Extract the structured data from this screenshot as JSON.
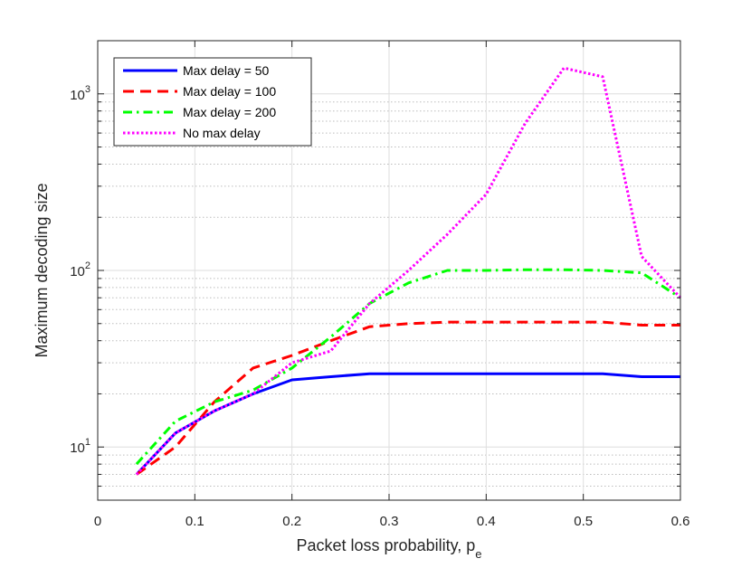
{
  "chart_data": {
    "type": "line",
    "title": "",
    "xlabel": "Packet loss probability, p",
    "xlabel_subscript": "e",
    "ylabel": "Maximum decoding size",
    "xlim": [
      0,
      0.6
    ],
    "ylim": [
      5,
      2000
    ],
    "yscale": "log",
    "xticks": [
      0,
      0.1,
      0.2,
      0.3,
      0.4,
      0.5,
      0.6
    ],
    "xtick_labels": [
      "0",
      "0.1",
      "0.2",
      "0.3",
      "0.4",
      "0.5",
      "0.6"
    ],
    "ytick_major": [
      {
        "value": 10,
        "base": "10",
        "exp": "1"
      },
      {
        "value": 100,
        "base": "10",
        "exp": "2"
      },
      {
        "value": 1000,
        "base": "10",
        "exp": "3"
      }
    ],
    "grid": true,
    "legend_position": "top-left",
    "series": [
      {
        "name": "Max delay = 50",
        "color": "#0000ff",
        "style": "solid",
        "x": [
          0.04,
          0.08,
          0.12,
          0.16,
          0.2,
          0.24,
          0.28,
          0.32,
          0.36,
          0.4,
          0.44,
          0.48,
          0.52,
          0.56,
          0.6
        ],
        "y": [
          7,
          12,
          16,
          20,
          24,
          25,
          26,
          26,
          26,
          26,
          26,
          26,
          26,
          25,
          25
        ]
      },
      {
        "name": "Max delay = 100",
        "color": "#ff0000",
        "style": "dashed",
        "x": [
          0.04,
          0.08,
          0.12,
          0.16,
          0.2,
          0.24,
          0.28,
          0.32,
          0.36,
          0.4,
          0.44,
          0.48,
          0.52,
          0.56,
          0.6
        ],
        "y": [
          7,
          10,
          18,
          28,
          33,
          40,
          48,
          50,
          51,
          51,
          51,
          51,
          51,
          49,
          49
        ]
      },
      {
        "name": "Max delay = 200",
        "color": "#00ff00",
        "style": "dashdot",
        "x": [
          0.04,
          0.08,
          0.12,
          0.16,
          0.2,
          0.24,
          0.28,
          0.32,
          0.36,
          0.4,
          0.44,
          0.48,
          0.52,
          0.56,
          0.6
        ],
        "y": [
          8,
          14,
          18,
          21,
          28,
          42,
          65,
          85,
          100,
          100,
          101,
          101,
          100,
          97,
          70
        ]
      },
      {
        "name": "No max delay",
        "color": "#ff00ff",
        "style": "dotted",
        "x": [
          0.04,
          0.08,
          0.12,
          0.16,
          0.2,
          0.24,
          0.28,
          0.32,
          0.36,
          0.4,
          0.44,
          0.48,
          0.52,
          0.56,
          0.6
        ],
        "y": [
          7,
          12,
          16,
          20,
          30,
          35,
          65,
          100,
          160,
          270,
          680,
          1400,
          1250,
          120,
          70
        ]
      }
    ]
  }
}
